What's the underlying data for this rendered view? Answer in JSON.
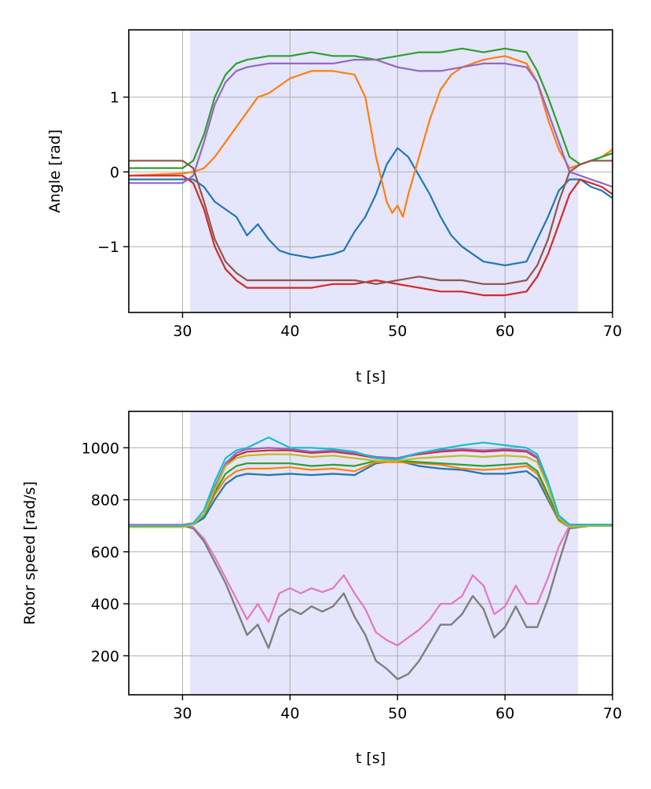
{
  "chart_data": [
    {
      "type": "line",
      "xlabel": "t [s]",
      "ylabel": "Angle [rad]",
      "xlim": [
        25,
        70
      ],
      "ylim": [
        -1.88,
        1.9
      ],
      "xticks": [
        30,
        40,
        50,
        60,
        70
      ],
      "yticks": [
        -1,
        0,
        1
      ],
      "ytick_labels": [
        "−1",
        "0",
        "1"
      ],
      "grid": true,
      "shaded_region": {
        "x_start": 30.7,
        "x_end": 66.8,
        "color": "#e5e5fb"
      },
      "series": [
        {
          "color": "#1f77b4",
          "x": [
            25,
            30,
            31,
            32,
            33,
            34,
            35,
            36,
            37,
            38,
            39,
            40,
            42,
            44,
            45,
            46,
            47,
            48,
            49,
            50,
            51,
            52,
            53,
            54,
            55,
            56,
            57,
            58,
            60,
            62,
            63,
            64,
            65,
            66,
            67,
            68,
            69,
            70
          ],
          "y": [
            -0.1,
            -0.1,
            -0.1,
            -0.2,
            -0.4,
            -0.5,
            -0.6,
            -0.85,
            -0.7,
            -0.9,
            -1.05,
            -1.1,
            -1.15,
            -1.1,
            -1.05,
            -0.8,
            -0.6,
            -0.3,
            0.1,
            0.32,
            0.2,
            -0.05,
            -0.3,
            -0.6,
            -0.85,
            -1.0,
            -1.1,
            -1.2,
            -1.25,
            -1.2,
            -0.9,
            -0.6,
            -0.25,
            -0.1,
            -0.1,
            -0.2,
            -0.25,
            -0.35
          ]
        },
        {
          "color": "#ff7f0e",
          "x": [
            25,
            30,
            31,
            32,
            33,
            34,
            35,
            36,
            37,
            38,
            40,
            42,
            44,
            46,
            47,
            48,
            49,
            49.5,
            50,
            50.5,
            51,
            52,
            53,
            54,
            55,
            56,
            58,
            60,
            62,
            63,
            64,
            65,
            66,
            67,
            68,
            69,
            70
          ],
          "y": [
            -0.05,
            -0.02,
            0.0,
            0.05,
            0.2,
            0.4,
            0.6,
            0.8,
            1.0,
            1.05,
            1.25,
            1.35,
            1.35,
            1.3,
            1.0,
            0.2,
            -0.4,
            -0.55,
            -0.45,
            -0.6,
            -0.3,
            0.2,
            0.7,
            1.1,
            1.3,
            1.4,
            1.5,
            1.55,
            1.45,
            1.2,
            0.7,
            0.3,
            0.05,
            0.1,
            0.15,
            0.2,
            0.3
          ]
        },
        {
          "color": "#2ca02c",
          "x": [
            25,
            30,
            31,
            32,
            33,
            34,
            35,
            36,
            38,
            40,
            42,
            44,
            46,
            48,
            50,
            52,
            54,
            56,
            58,
            60,
            62,
            63,
            64,
            65,
            66,
            67,
            68,
            69,
            70
          ],
          "y": [
            0.05,
            0.05,
            0.15,
            0.5,
            1.0,
            1.3,
            1.45,
            1.5,
            1.55,
            1.55,
            1.6,
            1.55,
            1.55,
            1.5,
            1.55,
            1.6,
            1.6,
            1.65,
            1.6,
            1.65,
            1.6,
            1.35,
            1.0,
            0.6,
            0.2,
            0.1,
            0.15,
            0.2,
            0.25
          ]
        },
        {
          "color": "#d62728",
          "x": [
            25,
            30,
            31,
            32,
            33,
            34,
            35,
            36,
            38,
            40,
            42,
            44,
            46,
            48,
            50,
            52,
            54,
            56,
            58,
            60,
            62,
            63,
            64,
            65,
            66,
            67,
            68,
            69,
            70
          ],
          "y": [
            -0.05,
            -0.05,
            -0.15,
            -0.5,
            -1.0,
            -1.3,
            -1.45,
            -1.55,
            -1.55,
            -1.55,
            -1.55,
            -1.5,
            -1.5,
            -1.45,
            -1.5,
            -1.55,
            -1.6,
            -1.6,
            -1.65,
            -1.65,
            -1.6,
            -1.4,
            -1.1,
            -0.7,
            -0.3,
            -0.1,
            -0.15,
            -0.2,
            -0.3
          ]
        },
        {
          "color": "#9467bd",
          "x": [
            25,
            30,
            31,
            32,
            33,
            34,
            35,
            36,
            38,
            40,
            42,
            44,
            46,
            48,
            50,
            52,
            54,
            56,
            58,
            60,
            62,
            63,
            64,
            65,
            66,
            67,
            68,
            69,
            70
          ],
          "y": [
            -0.15,
            -0.15,
            -0.05,
            0.4,
            0.9,
            1.2,
            1.35,
            1.4,
            1.45,
            1.45,
            1.45,
            1.45,
            1.5,
            1.5,
            1.4,
            1.35,
            1.35,
            1.4,
            1.45,
            1.45,
            1.4,
            1.2,
            0.8,
            0.4,
            0.0,
            -0.05,
            -0.1,
            -0.15,
            -0.2
          ]
        },
        {
          "color": "#8c564b",
          "x": [
            25,
            30,
            31,
            32,
            33,
            34,
            35,
            36,
            38,
            40,
            42,
            44,
            46,
            48,
            50,
            52,
            54,
            56,
            58,
            60,
            62,
            63,
            64,
            65,
            66,
            67,
            68,
            69,
            70
          ],
          "y": [
            0.15,
            0.15,
            0.05,
            -0.4,
            -0.9,
            -1.2,
            -1.35,
            -1.45,
            -1.45,
            -1.45,
            -1.45,
            -1.45,
            -1.45,
            -1.5,
            -1.45,
            -1.4,
            -1.45,
            -1.45,
            -1.5,
            -1.5,
            -1.45,
            -1.25,
            -0.9,
            -0.4,
            0.0,
            0.1,
            0.15,
            0.15,
            0.15
          ]
        }
      ]
    },
    {
      "type": "line",
      "xlabel": "t [s]",
      "ylabel": "Rotor speed [rad/s]",
      "xlim": [
        25,
        70
      ],
      "ylim": [
        50,
        1140
      ],
      "xticks": [
        30,
        40,
        50,
        60,
        70
      ],
      "yticks": [
        200,
        400,
        600,
        800,
        1000
      ],
      "grid": true,
      "shaded_region": {
        "x_start": 30.7,
        "x_end": 66.8,
        "color": "#e5e5fb"
      },
      "series": [
        {
          "color": "#1f77b4",
          "x": [
            25,
            30,
            31,
            32,
            33,
            34,
            35,
            36,
            38,
            40,
            42,
            44,
            46,
            48,
            50,
            52,
            54,
            56,
            58,
            60,
            62,
            63,
            64,
            65,
            66,
            68,
            70
          ],
          "y": [
            700,
            700,
            705,
            730,
            800,
            860,
            890,
            900,
            895,
            900,
            895,
            900,
            895,
            940,
            950,
            930,
            920,
            915,
            900,
            900,
            910,
            880,
            800,
            720,
            695,
            700,
            700
          ]
        },
        {
          "color": "#ff7f0e",
          "x": [
            25,
            30,
            31,
            32,
            33,
            34,
            35,
            36,
            38,
            40,
            42,
            44,
            46,
            48,
            50,
            52,
            54,
            56,
            58,
            60,
            62,
            63,
            64,
            65,
            66,
            68,
            70
          ],
          "y": [
            705,
            705,
            710,
            740,
            820,
            880,
            910,
            920,
            920,
            925,
            915,
            920,
            910,
            945,
            945,
            940,
            935,
            920,
            915,
            920,
            930,
            900,
            810,
            720,
            700,
            705,
            700
          ]
        },
        {
          "color": "#2ca02c",
          "x": [
            25,
            30,
            31,
            32,
            33,
            34,
            35,
            36,
            38,
            40,
            42,
            44,
            46,
            48,
            50,
            52,
            54,
            56,
            58,
            60,
            62,
            63,
            64,
            65,
            66,
            68,
            70
          ],
          "y": [
            700,
            700,
            710,
            740,
            830,
            900,
            930,
            940,
            940,
            940,
            930,
            935,
            930,
            950,
            950,
            945,
            940,
            935,
            930,
            935,
            940,
            910,
            820,
            725,
            700,
            700,
            700
          ]
        },
        {
          "color": "#d62728",
          "x": [
            25,
            30,
            31,
            32,
            33,
            34,
            35,
            36,
            38,
            40,
            42,
            44,
            46,
            48,
            50,
            52,
            54,
            56,
            58,
            60,
            62,
            63,
            64,
            65,
            66,
            68,
            70
          ],
          "y": [
            700,
            700,
            705,
            745,
            840,
            930,
            970,
            985,
            990,
            990,
            980,
            985,
            975,
            960,
            960,
            975,
            985,
            990,
            985,
            990,
            985,
            960,
            850,
            730,
            700,
            700,
            700
          ]
        },
        {
          "color": "#9467bd",
          "x": [
            25,
            30,
            31,
            32,
            33,
            34,
            35,
            36,
            38,
            40,
            42,
            44,
            46,
            48,
            50,
            52,
            54,
            56,
            58,
            60,
            62,
            63,
            64,
            65,
            66,
            68,
            70
          ],
          "y": [
            700,
            700,
            705,
            745,
            850,
            940,
            980,
            995,
            1000,
            995,
            985,
            990,
            980,
            965,
            960,
            980,
            990,
            995,
            990,
            995,
            990,
            965,
            860,
            735,
            700,
            700,
            700
          ]
        },
        {
          "color": "#8c564b",
          "x": [
            25,
            30,
            31,
            32,
            33,
            34,
            35,
            36,
            37,
            38,
            39,
            40,
            41,
            42,
            43,
            44,
            45,
            46,
            47,
            48,
            49,
            50,
            51,
            52,
            53,
            54,
            55,
            56,
            57,
            58,
            59,
            60,
            61,
            62,
            63,
            64,
            65,
            66,
            68,
            70
          ],
          "y": [
            700,
            700,
            690,
            640,
            560,
            480,
            380,
            280,
            320,
            230,
            350,
            380,
            360,
            390,
            370,
            390,
            440,
            350,
            280,
            180,
            150,
            110,
            130,
            180,
            250,
            320,
            320,
            360,
            430,
            380,
            270,
            310,
            390,
            310,
            310,
            420,
            560,
            690,
            700,
            700
          ]
        },
        {
          "color": "#e377c2",
          "x": [
            25,
            30,
            31,
            32,
            33,
            34,
            35,
            36,
            37,
            38,
            39,
            40,
            41,
            42,
            43,
            44,
            45,
            46,
            47,
            48,
            49,
            50,
            51,
            52,
            53,
            54,
            55,
            56,
            57,
            58,
            59,
            60,
            61,
            62,
            63,
            64,
            65,
            66,
            68,
            70
          ],
          "y": [
            705,
            705,
            695,
            650,
            580,
            500,
            420,
            340,
            400,
            330,
            440,
            460,
            440,
            460,
            445,
            460,
            510,
            440,
            380,
            290,
            260,
            240,
            270,
            300,
            340,
            400,
            400,
            430,
            510,
            470,
            360,
            390,
            470,
            400,
            400,
            500,
            620,
            700,
            705,
            700
          ]
        },
        {
          "color": "#7f7f7f",
          "x": [
            25,
            30,
            31,
            32,
            33,
            34,
            35,
            36,
            37,
            38,
            39,
            40,
            41,
            42,
            43,
            44,
            45,
            46,
            47,
            48,
            49,
            50,
            51,
            52,
            53,
            54,
            55,
            56,
            57,
            58,
            59,
            60,
            61,
            62,
            63,
            64,
            65,
            66,
            68,
            70
          ],
          "y": [
            700,
            700,
            690,
            640,
            560,
            480,
            380,
            280,
            320,
            230,
            350,
            380,
            360,
            390,
            370,
            390,
            440,
            350,
            280,
            180,
            150,
            110,
            130,
            180,
            250,
            320,
            320,
            360,
            430,
            380,
            270,
            310,
            390,
            310,
            310,
            420,
            560,
            690,
            700,
            700
          ]
        },
        {
          "color": "#bcbd22",
          "x": [
            25,
            30,
            31,
            32,
            33,
            34,
            35,
            36,
            38,
            40,
            42,
            44,
            46,
            48,
            50,
            52,
            54,
            56,
            58,
            60,
            62,
            63,
            64,
            65,
            66,
            68,
            70
          ],
          "y": [
            695,
            695,
            705,
            745,
            840,
            930,
            960,
            970,
            975,
            975,
            965,
            970,
            960,
            950,
            950,
            960,
            965,
            970,
            965,
            970,
            965,
            945,
            850,
            730,
            695,
            700,
            700
          ]
        },
        {
          "color": "#17becf",
          "x": [
            25,
            30,
            31,
            32,
            33,
            34,
            35,
            36,
            38,
            40,
            42,
            44,
            46,
            48,
            50,
            52,
            54,
            56,
            58,
            60,
            62,
            63,
            64,
            65,
            66,
            68,
            70
          ],
          "y": [
            700,
            700,
            710,
            760,
            870,
            960,
            990,
            1000,
            1040,
            1000,
            1000,
            995,
            985,
            960,
            955,
            980,
            995,
            1010,
            1020,
            1010,
            1000,
            975,
            870,
            740,
            705,
            705,
            705
          ]
        }
      ]
    }
  ]
}
